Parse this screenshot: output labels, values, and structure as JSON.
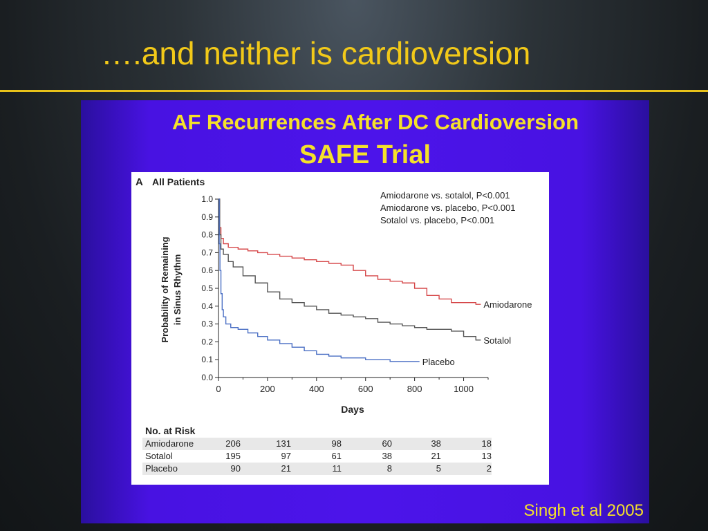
{
  "slide": {
    "title": "….and neither is cardioversion",
    "panel_title": "AF Recurrences After DC Cardioversion",
    "panel_subtitle": "SAFE Trial",
    "citation": "Singh et al 2005"
  },
  "colors": {
    "title": "#f2c919",
    "rule": "#e8c21a",
    "panel": "#4c14ea",
    "amiodarone": "#d6484a",
    "sotalol": "#555555",
    "placebo": "#4a6fc4"
  },
  "chart_data": {
    "type": "line",
    "panel_label": "A",
    "title": "All Patients",
    "xlabel": "Days",
    "ylabel": [
      "Probability of Remaining",
      "in Sinus Rhythm"
    ],
    "xlim": [
      0,
      1100
    ],
    "ylim": [
      0,
      1.0
    ],
    "x_ticks": [
      0,
      200,
      400,
      600,
      800,
      1000
    ],
    "x_tick_labels": [
      "0",
      "200",
      "400",
      "600",
      "800",
      "1000"
    ],
    "y_ticks": [
      0,
      0.1,
      0.2,
      0.3,
      0.4,
      0.5,
      0.6,
      0.7,
      0.8,
      0.9,
      1.0
    ],
    "y_tick_labels": [
      "0.0",
      "0.1",
      "0.2",
      "0.3",
      "0.4",
      "0.5",
      "0.6",
      "0.7",
      "0.8",
      "0.9",
      "1.0"
    ],
    "grid": false,
    "legend_placement": "inline-right",
    "annotations": [
      "Amiodarone vs. sotalol, P<0.001",
      "Amiodarone vs. placebo, P<0.001",
      "Sotalol vs. placebo, P<0.001"
    ],
    "series": [
      {
        "name": "Amiodarone",
        "step": true,
        "x": [
          0,
          5,
          10,
          20,
          40,
          80,
          120,
          160,
          200,
          250,
          300,
          350,
          400,
          450,
          500,
          550,
          600,
          650,
          700,
          750,
          800,
          850,
          900,
          950,
          1000,
          1050
        ],
        "y": [
          1.0,
          0.84,
          0.78,
          0.75,
          0.73,
          0.72,
          0.71,
          0.7,
          0.69,
          0.68,
          0.67,
          0.66,
          0.65,
          0.64,
          0.63,
          0.6,
          0.57,
          0.55,
          0.54,
          0.53,
          0.5,
          0.46,
          0.44,
          0.42,
          0.42,
          0.41
        ]
      },
      {
        "name": "Sotalol",
        "step": true,
        "x": [
          0,
          5,
          10,
          20,
          40,
          60,
          100,
          150,
          200,
          250,
          300,
          350,
          400,
          450,
          500,
          550,
          600,
          650,
          700,
          750,
          800,
          850,
          900,
          950,
          1000,
          1050
        ],
        "y": [
          1.0,
          0.8,
          0.72,
          0.69,
          0.65,
          0.62,
          0.57,
          0.53,
          0.48,
          0.44,
          0.42,
          0.4,
          0.38,
          0.36,
          0.35,
          0.34,
          0.33,
          0.31,
          0.3,
          0.29,
          0.28,
          0.27,
          0.27,
          0.26,
          0.23,
          0.21
        ]
      },
      {
        "name": "Placebo",
        "step": true,
        "x": [
          0,
          3,
          6,
          10,
          15,
          20,
          30,
          50,
          80,
          120,
          160,
          200,
          250,
          300,
          350,
          400,
          450,
          500,
          600,
          700,
          800
        ],
        "y": [
          1.0,
          0.75,
          0.6,
          0.47,
          0.38,
          0.34,
          0.3,
          0.28,
          0.27,
          0.25,
          0.23,
          0.21,
          0.19,
          0.17,
          0.15,
          0.13,
          0.12,
          0.11,
          0.1,
          0.09,
          0.09
        ]
      }
    ],
    "risk_table": {
      "title": "No. at Risk",
      "days": [
        0,
        200,
        400,
        600,
        800,
        1000
      ],
      "rows": [
        {
          "label": "Amiodarone",
          "values": [
            "206",
            "131",
            "98",
            "60",
            "38",
            "18"
          ]
        },
        {
          "label": "Sotalol",
          "values": [
            "195",
            "97",
            "61",
            "38",
            "21",
            "13"
          ]
        },
        {
          "label": "Placebo",
          "values": [
            "90",
            "21",
            "11",
            "8",
            "5",
            "2"
          ]
        }
      ]
    }
  }
}
